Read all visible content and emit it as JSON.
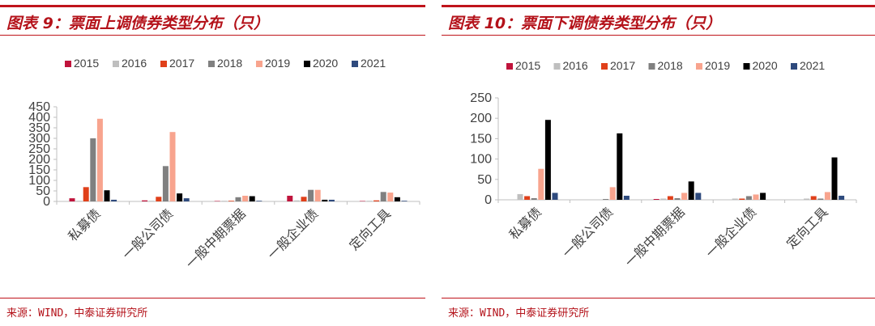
{
  "charts": [
    {
      "title": "图表 9：票面上调债券类型分布（只）",
      "source": "来源：WIND，中泰证券研究所",
      "chart_data": {
        "type": "bar",
        "categories": [
          "私募债",
          "一般公司债",
          "一般中期票据",
          "一般企业债",
          "定向工具"
        ],
        "ylim": [
          0,
          450
        ],
        "yticks": [
          0,
          50,
          100,
          150,
          200,
          250,
          300,
          350,
          400,
          450
        ],
        "legend_position": "top",
        "grid": false,
        "series": [
          {
            "name": "2015",
            "color": "#c0143c",
            "values": [
              15,
              5,
              2,
              27,
              2
            ]
          },
          {
            "name": "2016",
            "color": "#bfbfbf",
            "values": [
              3,
              3,
              3,
              5,
              3
            ]
          },
          {
            "name": "2017",
            "color": "#e0401a",
            "values": [
              68,
              22,
              3,
              22,
              5
            ]
          },
          {
            "name": "2018",
            "color": "#808080",
            "values": [
              300,
              168,
              20,
              55,
              45
            ]
          },
          {
            "name": "2019",
            "color": "#f8a48e",
            "values": [
              393,
              330,
              27,
              55,
              42
            ]
          },
          {
            "name": "2020",
            "color": "#000000",
            "values": [
              53,
              38,
              25,
              8,
              20
            ]
          },
          {
            "name": "2021",
            "color": "#2e4a7d",
            "values": [
              8,
              15,
              3,
              8,
              3
            ]
          }
        ]
      }
    },
    {
      "title": "图表 10：票面下调债券类型分布（只）",
      "source": "来源：WIND，中泰证券研究所",
      "chart_data": {
        "type": "bar",
        "categories": [
          "私募债",
          "一般公司债",
          "一般中期票据",
          "一般企业债",
          "定向工具"
        ],
        "ylim": [
          0,
          250
        ],
        "yticks": [
          0,
          50,
          100,
          150,
          200,
          250
        ],
        "legend_position": "top",
        "grid": false,
        "series": [
          {
            "name": "2015",
            "color": "#c0143c",
            "values": [
              0,
              0,
              2,
              0,
              0
            ]
          },
          {
            "name": "2016",
            "color": "#bfbfbf",
            "values": [
              14,
              0,
              3,
              3,
              3
            ]
          },
          {
            "name": "2017",
            "color": "#e0401a",
            "values": [
              9,
              0,
              9,
              3,
              9
            ]
          },
          {
            "name": "2018",
            "color": "#808080",
            "values": [
              4,
              2,
              4,
              9,
              3
            ]
          },
          {
            "name": "2019",
            "color": "#f8a48e",
            "values": [
              76,
              31,
              17,
              13,
              19
            ]
          },
          {
            "name": "2020",
            "color": "#000000",
            "values": [
              196,
              163,
              45,
              17,
              104
            ]
          },
          {
            "name": "2021",
            "color": "#2e4a7d",
            "values": [
              17,
              10,
              17,
              0,
              10
            ]
          }
        ]
      }
    }
  ]
}
